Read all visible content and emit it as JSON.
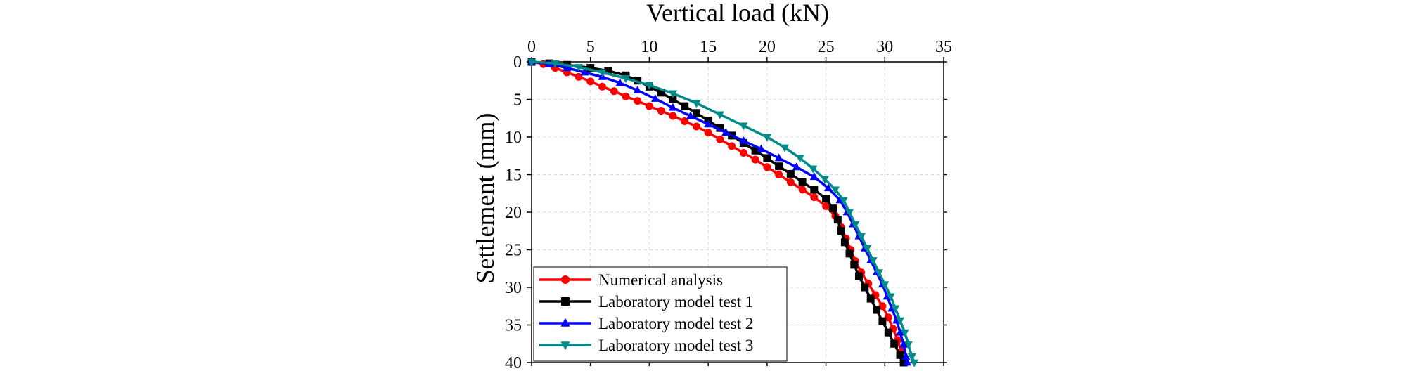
{
  "chart_data": {
    "type": "line",
    "title": "",
    "xlabel": "Vertical load (kN)",
    "ylabel": "Settlement (mm)",
    "x_axis_position": "top",
    "y_axis_inverted": true,
    "xlim": [
      0,
      35
    ],
    "ylim": [
      0,
      40
    ],
    "xticks": [
      0,
      5,
      10,
      15,
      20,
      25,
      30,
      35
    ],
    "yticks": [
      0,
      5,
      10,
      15,
      20,
      25,
      30,
      35,
      40
    ],
    "grid": true,
    "legend_position": "bottom-left",
    "series": [
      {
        "name": "Numerical analysis",
        "color": "#ff0000",
        "marker": "circle",
        "points": [
          [
            0,
            0
          ],
          [
            1,
            0.3
          ],
          [
            2,
            0.8
          ],
          [
            3,
            1.4
          ],
          [
            4,
            2
          ],
          [
            5,
            2.6
          ],
          [
            6,
            3.3
          ],
          [
            7,
            3.9
          ],
          [
            8,
            4.6
          ],
          [
            9,
            5.2
          ],
          [
            10,
            5.9
          ],
          [
            11,
            6.5
          ],
          [
            12,
            7.2
          ],
          [
            13,
            7.9
          ],
          [
            14,
            8.6
          ],
          [
            15,
            9.4
          ],
          [
            16,
            10.3
          ],
          [
            17,
            11.2
          ],
          [
            18,
            12.1
          ],
          [
            19,
            13
          ],
          [
            20,
            14
          ],
          [
            21,
            15
          ],
          [
            22,
            16
          ],
          [
            23,
            17
          ],
          [
            24,
            18
          ],
          [
            25,
            19.2
          ],
          [
            25.8,
            20.5
          ],
          [
            26.3,
            22
          ],
          [
            26.7,
            23.5
          ],
          [
            27.1,
            25
          ],
          [
            27.5,
            26.5
          ],
          [
            28,
            28
          ],
          [
            28.6,
            29.5
          ],
          [
            29.2,
            31
          ],
          [
            29.8,
            32.5
          ],
          [
            30.3,
            34
          ],
          [
            30.7,
            35.5
          ],
          [
            31.1,
            37
          ],
          [
            31.4,
            38.5
          ],
          [
            31.6,
            40
          ]
        ]
      },
      {
        "name": "Laboratory model test 1",
        "color": "#000000",
        "marker": "square",
        "points": [
          [
            0,
            0
          ],
          [
            1.5,
            0.2
          ],
          [
            3,
            0.4
          ],
          [
            5,
            0.8
          ],
          [
            6.5,
            1.2
          ],
          [
            8,
            1.8
          ],
          [
            9,
            2.5
          ],
          [
            10,
            3.3
          ],
          [
            11,
            4.1
          ],
          [
            12,
            5
          ],
          [
            13,
            5.9
          ],
          [
            14,
            6.8
          ],
          [
            15,
            7.8
          ],
          [
            16,
            8.8
          ],
          [
            17,
            9.8
          ],
          [
            18,
            10.8
          ],
          [
            19,
            11.8
          ],
          [
            20,
            12.8
          ],
          [
            21,
            13.9
          ],
          [
            22,
            14.9
          ],
          [
            23,
            16
          ],
          [
            24,
            17
          ],
          [
            25,
            18.2
          ],
          [
            25.6,
            19.5
          ],
          [
            26,
            21
          ],
          [
            26.3,
            22.5
          ],
          [
            26.6,
            24
          ],
          [
            27,
            25.5
          ],
          [
            27.4,
            27
          ],
          [
            27.8,
            28.5
          ],
          [
            28.3,
            30
          ],
          [
            28.8,
            31.5
          ],
          [
            29.3,
            33
          ],
          [
            29.8,
            34.5
          ],
          [
            30.3,
            36
          ],
          [
            30.8,
            37.5
          ],
          [
            31.3,
            39
          ],
          [
            31.6,
            40
          ]
        ]
      },
      {
        "name": "Laboratory model test 2",
        "color": "#0000ff",
        "marker": "triangle-up",
        "points": [
          [
            0,
            0
          ],
          [
            1.5,
            0.3
          ],
          [
            3,
            0.8
          ],
          [
            4.5,
            1.4
          ],
          [
            6,
            2
          ],
          [
            7.5,
            2.8
          ],
          [
            9,
            3.8
          ],
          [
            10.5,
            4.9
          ],
          [
            12,
            6.1
          ],
          [
            13.5,
            7.2
          ],
          [
            15,
            8.3
          ],
          [
            16.5,
            9.4
          ],
          [
            18,
            10.5
          ],
          [
            19.5,
            11.6
          ],
          [
            21,
            12.8
          ],
          [
            22.5,
            14
          ],
          [
            24,
            15.3
          ],
          [
            25.2,
            16.8
          ],
          [
            26.2,
            18.4
          ],
          [
            26.8,
            20
          ],
          [
            27.3,
            21.6
          ],
          [
            27.8,
            23.2
          ],
          [
            28.3,
            24.8
          ],
          [
            28.8,
            26.4
          ],
          [
            29.3,
            28
          ],
          [
            29.8,
            29.6
          ],
          [
            30.2,
            31.2
          ],
          [
            30.6,
            32.8
          ],
          [
            31,
            34.4
          ],
          [
            31.3,
            36
          ],
          [
            31.6,
            37.6
          ],
          [
            31.8,
            39.2
          ],
          [
            31.9,
            40
          ]
        ]
      },
      {
        "name": "Laboratory model test 3",
        "color": "#008b8b",
        "marker": "triangle-down",
        "points": [
          [
            0,
            0
          ],
          [
            2,
            0.2
          ],
          [
            4,
            0.7
          ],
          [
            6,
            1.4
          ],
          [
            8,
            2.2
          ],
          [
            10,
            3.1
          ],
          [
            12,
            4.2
          ],
          [
            14,
            5.5
          ],
          [
            16,
            7
          ],
          [
            18,
            8.5
          ],
          [
            20,
            10
          ],
          [
            21.5,
            11.4
          ],
          [
            22.8,
            12.8
          ],
          [
            23.9,
            14.2
          ],
          [
            24.9,
            15.6
          ],
          [
            25.8,
            17
          ],
          [
            26.5,
            18.4
          ],
          [
            27,
            20
          ],
          [
            27.5,
            21.6
          ],
          [
            28,
            23.2
          ],
          [
            28.5,
            24.8
          ],
          [
            29,
            26.4
          ],
          [
            29.5,
            28
          ],
          [
            30,
            29.6
          ],
          [
            30.5,
            31.2
          ],
          [
            30.9,
            32.8
          ],
          [
            31.3,
            34.4
          ],
          [
            31.7,
            36
          ],
          [
            32,
            37.6
          ],
          [
            32.3,
            39.2
          ],
          [
            32.5,
            40
          ]
        ]
      }
    ]
  }
}
